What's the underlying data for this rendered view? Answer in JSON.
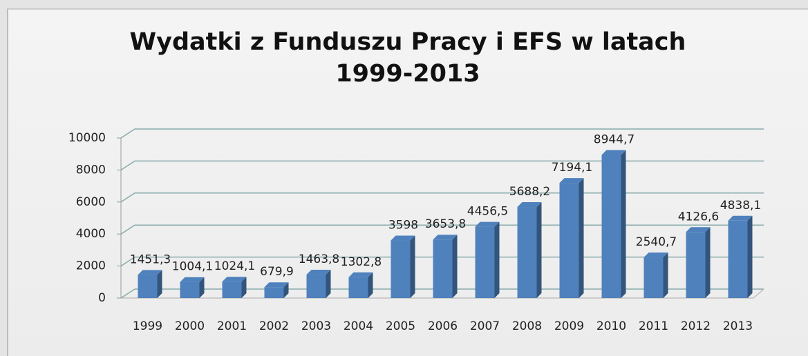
{
  "chart_data": {
    "type": "bar3d",
    "title": "Wydatki z Funduszu Pracy i EFS w latach 1999-2013",
    "categories": [
      "1999",
      "2000",
      "2001",
      "2002",
      "2003",
      "2004",
      "2005",
      "2006",
      "2007",
      "2008",
      "2009",
      "2010",
      "2011",
      "2012",
      "2013"
    ],
    "values": [
      1451.3,
      1004.1,
      1024.1,
      679.9,
      1463.8,
      1302.8,
      3598,
      3653.8,
      4456.5,
      5688.2,
      7194.1,
      8944.7,
      2540.7,
      4126.6,
      4838.1
    ],
    "value_labels": [
      "1451,3",
      "1004,1",
      "1024,1",
      "679,9",
      "1463,8",
      "1302,8",
      "3598",
      "3653,8",
      "4456,5",
      "5688,2",
      "7194,1",
      "8944,7",
      "2540,7",
      "4126,6",
      "4838,1"
    ],
    "color": "#4f81bd",
    "ylim": [
      0,
      10000
    ],
    "yticks": [
      0,
      2000,
      4000,
      6000,
      8000,
      10000
    ],
    "grid": true
  }
}
